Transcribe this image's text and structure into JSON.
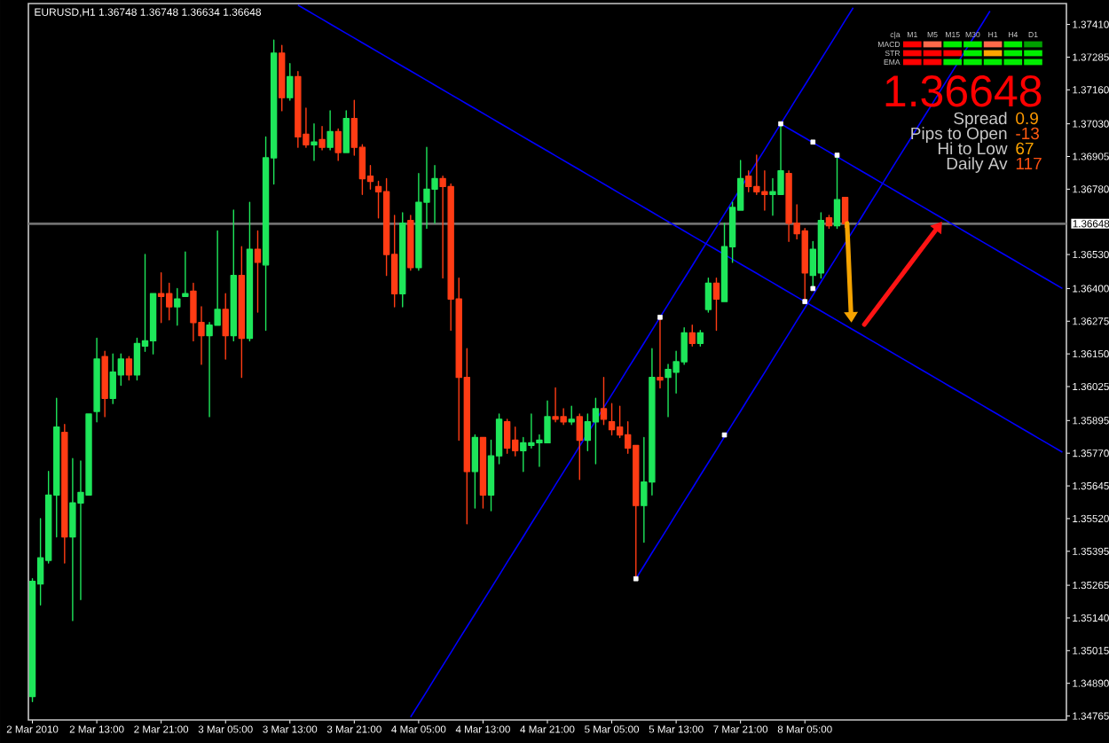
{
  "chart_data": {
    "type": "candlestick",
    "title": "EURUSD,H1 1.36748 1.36748 1.36634 1.36648",
    "categories": [
      "2 Mar 2010",
      null,
      null,
      null,
      null,
      null,
      null,
      null,
      "2 Mar 13:00",
      null,
      null,
      null,
      null,
      null,
      null,
      null,
      "2 Mar 21:00",
      null,
      null,
      null,
      null,
      null,
      null,
      null,
      "3 Mar 05:00",
      null,
      null,
      null,
      null,
      null,
      null,
      null,
      "3 Mar 13:00",
      null,
      null,
      null,
      null,
      null,
      null,
      null,
      "3 Mar 21:00",
      null,
      null,
      null,
      null,
      null,
      null,
      null,
      "4 Mar 05:00",
      null,
      null,
      null,
      null,
      null,
      null,
      null,
      "4 Mar 13:00",
      null,
      null,
      null,
      null,
      null,
      null,
      null,
      "4 Mar 21:00",
      null,
      null,
      null,
      null,
      null,
      null,
      null,
      "5 Mar 05:00",
      null,
      null,
      null,
      null,
      null,
      null,
      null,
      "5 Mar 13:00",
      null,
      null,
      null,
      null,
      null,
      null,
      null,
      "7 Mar 21:00",
      null,
      null,
      null,
      null,
      null,
      null,
      null,
      "8 Mar 05:00",
      null,
      null,
      null,
      null,
      null,
      null,
      null,
      null,
      null,
      null,
      null,
      null,
      null,
      null,
      null,
      null,
      null,
      null,
      null,
      null,
      null,
      null,
      null,
      null,
      null,
      null,
      null,
      null,
      null,
      null,
      null,
      null
    ],
    "ohlc": [
      [
        1.3484,
        1.3529,
        1.3482,
        1.3528
      ],
      [
        1.3527,
        1.3552,
        1.3519,
        1.3537
      ],
      [
        1.3536,
        1.357,
        1.3535,
        1.3561
      ],
      [
        1.3561,
        1.3598,
        1.3545,
        1.3587
      ],
      [
        1.3585,
        1.3588,
        1.3535,
        1.3545
      ],
      [
        1.3545,
        1.3575,
        1.3513,
        1.3558
      ],
      [
        1.3558,
        1.3574,
        1.3521,
        1.3562
      ],
      [
        1.3561,
        1.3592,
        1.3561,
        1.3592
      ],
      [
        1.3593,
        1.3621,
        1.3589,
        1.3613
      ],
      [
        1.3614,
        1.3616,
        1.3591,
        1.3598
      ],
      [
        1.3598,
        1.3615,
        1.3596,
        1.3608
      ],
      [
        1.3607,
        1.3615,
        1.3603,
        1.3613
      ],
      [
        1.3613,
        1.3614,
        1.3605,
        1.3607
      ],
      [
        1.3607,
        1.3621,
        1.3605,
        1.3619
      ],
      [
        1.3618,
        1.3653,
        1.3616,
        1.362
      ],
      [
        1.362,
        1.3638,
        1.3615,
        1.3638
      ],
      [
        1.3638,
        1.3646,
        1.3627,
        1.3637
      ],
      [
        1.3638,
        1.3642,
        1.3628,
        1.3633
      ],
      [
        1.3633,
        1.364,
        1.3626,
        1.3636
      ],
      [
        1.3637,
        1.3654,
        1.3637,
        1.3638
      ],
      [
        1.3639,
        1.3642,
        1.362,
        1.3627
      ],
      [
        1.3627,
        1.3633,
        1.3611,
        1.3622
      ],
      [
        1.3622,
        1.3627,
        1.3591,
        1.3626
      ],
      [
        1.3626,
        1.3662,
        1.3626,
        1.3632
      ],
      [
        1.3632,
        1.3638,
        1.3613,
        1.3622
      ],
      [
        1.3622,
        1.367,
        1.362,
        1.3645
      ],
      [
        1.3645,
        1.3656,
        1.3606,
        1.3621
      ],
      [
        1.3621,
        1.3673,
        1.362,
        1.3655
      ],
      [
        1.3655,
        1.3662,
        1.3631,
        1.365
      ],
      [
        1.3649,
        1.3698,
        1.3624,
        1.369
      ],
      [
        1.369,
        1.3735,
        1.368,
        1.373
      ],
      [
        1.373,
        1.3733,
        1.3708,
        1.3713
      ],
      [
        1.3713,
        1.3726,
        1.3712,
        1.3721
      ],
      [
        1.3721,
        1.3723,
        1.3694,
        1.3698
      ],
      [
        1.3699,
        1.3709,
        1.3694,
        1.3695
      ],
      [
        1.3695,
        1.3703,
        1.3689,
        1.3696
      ],
      [
        1.3697,
        1.3702,
        1.3693,
        1.3694
      ],
      [
        1.3694,
        1.3708,
        1.3693,
        1.37
      ],
      [
        1.37,
        1.3701,
        1.3689,
        1.3692
      ],
      [
        1.3692,
        1.3708,
        1.3692,
        1.3705
      ],
      [
        1.3705,
        1.3712,
        1.3691,
        1.3694
      ],
      [
        1.3694,
        1.3695,
        1.3676,
        1.3682
      ],
      [
        1.3683,
        1.3687,
        1.3678,
        1.3681
      ],
      [
        1.3679,
        1.3681,
        1.3667,
        1.3677
      ],
      [
        1.3677,
        1.3682,
        1.3645,
        1.3653
      ],
      [
        1.3653,
        1.3668,
        1.3633,
        1.3638
      ],
      [
        1.3638,
        1.3669,
        1.3633,
        1.3665
      ],
      [
        1.3666,
        1.3668,
        1.3647,
        1.3648
      ],
      [
        1.3648,
        1.3684,
        1.3647,
        1.3673
      ],
      [
        1.3673,
        1.3694,
        1.3663,
        1.3678
      ],
      [
        1.3678,
        1.3687,
        1.3665,
        1.3682
      ],
      [
        1.3682,
        1.3683,
        1.3644,
        1.3679
      ],
      [
        1.3679,
        1.368,
        1.3624,
        1.3636
      ],
      [
        1.3636,
        1.3644,
        1.3582,
        1.3606
      ],
      [
        1.3606,
        1.3617,
        1.355,
        1.357
      ],
      [
        1.357,
        1.3584,
        1.3556,
        1.3583
      ],
      [
        1.3583,
        1.3583,
        1.3556,
        1.3561
      ],
      [
        1.3561,
        1.3582,
        1.3555,
        1.3576
      ],
      [
        1.3576,
        1.3592,
        1.3573,
        1.359
      ],
      [
        1.3589,
        1.359,
        1.3577,
        1.3579
      ],
      [
        1.3582,
        1.3587,
        1.3576,
        1.3578
      ],
      [
        1.3578,
        1.3583,
        1.357,
        1.3581
      ],
      [
        1.358,
        1.3592,
        1.3579,
        1.3581
      ],
      [
        1.3581,
        1.3584,
        1.3572,
        1.3582
      ],
      [
        1.3581,
        1.3597,
        1.3581,
        1.3591
      ],
      [
        1.3591,
        1.3602,
        1.3589,
        1.359
      ],
      [
        1.3591,
        1.3594,
        1.3588,
        1.3589
      ],
      [
        1.3589,
        1.3595,
        1.3588,
        1.359
      ],
      [
        1.3591,
        1.3592,
        1.3567,
        1.3582
      ],
      [
        1.3582,
        1.3592,
        1.3578,
        1.3589
      ],
      [
        1.3589,
        1.3598,
        1.3573,
        1.3594
      ],
      [
        1.3594,
        1.3606,
        1.3588,
        1.359
      ],
      [
        1.3589,
        1.3596,
        1.3584,
        1.3586
      ],
      [
        1.3587,
        1.3595,
        1.3583,
        1.3584
      ],
      [
        1.3584,
        1.3589,
        1.3577,
        1.3579
      ],
      [
        1.358,
        1.358,
        1.3529,
        1.3557
      ],
      [
        1.3557,
        1.3583,
        1.3543,
        1.3566
      ],
      [
        1.3566,
        1.3617,
        1.3561,
        1.3606
      ],
      [
        1.3606,
        1.3629,
        1.3602,
        1.3605
      ],
      [
        1.3606,
        1.3611,
        1.3591,
        1.3609
      ],
      [
        1.3608,
        1.3616,
        1.36,
        1.3612
      ],
      [
        1.3612,
        1.3625,
        1.3611,
        1.3623
      ],
      [
        1.3623,
        1.3626,
        1.3618,
        1.3619
      ],
      [
        1.3619,
        1.3624,
        1.3618,
        1.3623
      ],
      [
        1.3632,
        1.3644,
        1.3631,
        1.3642
      ],
      [
        1.3642,
        1.3644,
        1.3624,
        1.3636
      ],
      [
        1.3635,
        1.3665,
        1.3635,
        1.3656
      ],
      [
        1.3656,
        1.3673,
        1.365,
        1.3671
      ],
      [
        1.367,
        1.3689,
        1.367,
        1.3682
      ],
      [
        1.3683,
        1.3685,
        1.3677,
        1.3679
      ],
      [
        1.3679,
        1.3691,
        1.3676,
        1.3677
      ],
      [
        1.3677,
        1.3685,
        1.367,
        1.3676
      ],
      [
        1.3676,
        1.3682,
        1.3668,
        1.3677
      ],
      [
        1.3676,
        1.3703,
        1.3676,
        1.3685
      ],
      [
        1.3684,
        1.3685,
        1.3658,
        1.3665
      ],
      [
        1.3665,
        1.3672,
        1.3659,
        1.3661
      ],
      [
        1.3662,
        1.3663,
        1.3635,
        1.3646
      ],
      [
        1.3645,
        1.3658,
        1.364,
        1.3655
      ],
      [
        1.3646,
        1.3669,
        1.3644,
        1.3666
      ],
      [
        1.3667,
        1.3668,
        1.3663,
        1.3664
      ],
      [
        1.3664,
        1.3691,
        1.3663,
        1.3674
      ],
      [
        1.36748,
        1.36748,
        1.36634,
        1.36648
      ],
      null,
      null,
      null,
      null,
      null,
      null,
      null,
      null,
      null,
      null,
      null,
      null,
      null,
      null,
      null,
      null,
      null,
      null,
      null,
      null,
      null,
      null,
      null,
      null,
      null,
      null,
      null
    ],
    "colors": [
      "#1ee65a",
      "#1ee65a",
      "#1ee65a",
      "#1ee65a",
      "#ff3c14",
      "#1ee65a",
      "#1ee65a",
      "#1ee65a",
      "#1ee65a",
      "#ff3c14",
      "#1ee65a",
      "#1ee65a",
      "#ff3c14",
      "#1ee65a",
      "#1ee65a",
      "#1ee65a",
      "#ff3c14",
      "#ff3c14",
      "#1ee65a",
      "#1ee65a",
      "#ff3c14",
      "#ff3c14",
      "#1ee65a",
      "#1ee65a",
      "#ff3c14",
      "#1ee65a",
      "#ff3c14",
      "#1ee65a",
      "#ff3c14",
      "#1ee65a",
      "#1ee65a",
      "#ff3c14",
      "#1ee65a",
      "#ff3c14",
      "#ff3c14",
      "#1ee65a",
      "#ff3c14",
      "#1ee65a",
      "#ff3c14",
      "#1ee65a",
      "#ff3c14",
      "#ff3c14",
      "#ff3c14",
      "#ff3c14",
      "#ff3c14",
      "#ff3c14",
      "#1ee65a",
      "#ff3c14",
      "#1ee65a",
      "#1ee65a",
      "#1ee65a",
      "#ff3c14",
      "#ff3c14",
      "#ff3c14",
      "#ff3c14",
      "#1ee65a",
      "#ff3c14",
      "#1ee65a",
      "#1ee65a",
      "#ff3c14",
      "#ff3c14",
      "#1ee65a",
      "#1ee65a",
      "#1ee65a",
      "#1ee65a",
      "#ff3c14",
      "#ff3c14",
      "#1ee65a",
      "#ff3c14",
      "#1ee65a",
      "#1ee65a",
      "#ff3c14",
      "#ff3c14",
      "#ff3c14",
      "#ff3c14",
      "#ff3c14",
      "#1ee65a",
      "#1ee65a",
      "#ff3c14",
      "#1ee65a",
      "#1ee65a",
      "#1ee65a",
      "#ff3c14",
      "#1ee65a",
      "#1ee65a",
      "#ff3c14",
      "#1ee65a",
      "#1ee65a",
      "#1ee65a",
      "#ff3c14",
      "#ff3c14",
      "#ff3c14",
      "#1ee65a",
      "#1ee65a",
      "#ff3c14",
      "#ff3c14",
      "#ff3c14",
      "#1ee65a",
      "#1ee65a",
      "#ff3c14",
      "#1ee65a",
      "#ff3c14",
      null,
      null,
      null,
      null,
      null,
      null,
      null,
      null,
      null,
      null,
      null,
      null,
      null,
      null,
      null,
      null,
      null,
      null,
      null,
      null,
      null,
      null,
      null,
      null,
      null,
      null,
      null
    ],
    "ylim": [
      1.3475,
      1.3749
    ],
    "yticks": [
      {
        "value": 1.3741,
        "label": "1.37410"
      },
      1.37285,
      {
        "value": 1.3716,
        "label": "1.37160"
      },
      {
        "value": 1.3703,
        "label": "1.37030"
      },
      1.36905,
      {
        "value": 1.3678,
        "label": "1.36780"
      },
      {
        "value": 1.3653,
        "label": "1.36530"
      },
      {
        "value": 1.364,
        "label": "1.36400"
      },
      1.36275,
      {
        "value": 1.3615,
        "label": "1.36150"
      },
      1.36025,
      1.35895,
      {
        "value": 1.3577,
        "label": "1.35770"
      },
      1.35645,
      {
        "value": 1.3552,
        "label": "1.35520"
      },
      1.35395,
      1.35265,
      {
        "value": 1.3514,
        "label": "1.35140"
      },
      1.35015,
      {
        "value": 1.3489,
        "label": "1.34890"
      },
      1.34765
    ],
    "series": [
      {
        "type": "line",
        "color": "#0000ff",
        "values": [
          null,
          null,
          null,
          null,
          null,
          null,
          null,
          null,
          null,
          null,
          null,
          null,
          null,
          null,
          null,
          null,
          null,
          null,
          null,
          null,
          null,
          null,
          null,
          null,
          null,
          null,
          null,
          null,
          null,
          null,
          null,
          null,
          null,
          null,
          null,
          null,
          null,
          null,
          null,
          null,
          null,
          null,
          null,
          null,
          null,
          null,
          null,
          1.34761,
          1.3481,
          1.34859,
          1.34909,
          1.34958,
          1.35007,
          1.35057,
          1.35106,
          1.35155,
          1.35205,
          1.35254,
          1.35303,
          1.35353,
          1.35402,
          1.35451,
          1.35501,
          1.3555,
          1.35599,
          1.35649,
          1.35698,
          1.35747,
          1.35797,
          1.35846,
          1.35895,
          1.35945,
          1.35994,
          1.36043,
          1.36093,
          1.36142,
          1.36191,
          1.36241,
          1.3629,
          1.36339,
          1.36389,
          1.36438,
          1.36487,
          1.36537,
          1.36586,
          1.36635,
          1.36685,
          1.36734,
          1.36783,
          1.36833,
          1.36882,
          1.36931,
          1.36981,
          1.3703,
          1.37079,
          1.37129,
          1.37178,
          1.37227,
          1.37277,
          1.37326,
          1.37375,
          1.37425,
          1.37474,
          null,
          null,
          null,
          null,
          null,
          null,
          null,
          null,
          null,
          null,
          null,
          null,
          null,
          null,
          null,
          null,
          null,
          null,
          null,
          null,
          null,
          null,
          null,
          null,
          null,
          null
        ]
      },
      {
        "type": "line",
        "color": "#0000ff",
        "values": [
          null,
          null,
          null,
          null,
          null,
          null,
          null,
          null,
          null,
          null,
          null,
          null,
          null,
          null,
          null,
          null,
          null,
          null,
          null,
          null,
          null,
          null,
          null,
          null,
          null,
          null,
          null,
          null,
          null,
          null,
          null,
          null,
          null,
          null,
          null,
          null,
          null,
          null,
          null,
          null,
          null,
          null,
          null,
          null,
          null,
          null,
          null,
          null,
          null,
          null,
          null,
          null,
          null,
          null,
          null,
          null,
          null,
          null,
          null,
          null,
          null,
          null,
          null,
          null,
          null,
          null,
          null,
          null,
          null,
          null,
          null,
          null,
          null,
          null,
          null,
          1.3529,
          1.35339,
          1.35389,
          1.35438,
          1.35487,
          1.35537,
          1.35586,
          1.35635,
          1.35685,
          1.35734,
          1.35783,
          1.35833,
          1.35882,
          1.35931,
          1.35981,
          1.3603,
          1.36079,
          1.36129,
          1.36178,
          1.36227,
          1.36277,
          1.36326,
          1.36375,
          1.36425,
          1.36474,
          1.36523,
          1.36573,
          1.36622,
          1.36671,
          1.36721,
          1.3677,
          1.36819,
          1.36869,
          1.36918,
          1.36967,
          1.37017,
          1.37066,
          1.37115,
          1.37165,
          1.37214,
          1.37263,
          1.37313,
          1.37362,
          1.37411,
          1.37461,
          null,
          null,
          null,
          null,
          null,
          null,
          null,
          null,
          null
        ]
      },
      {
        "type": "line",
        "color": "#0000ff",
        "values": [
          null,
          null,
          null,
          null,
          null,
          null,
          null,
          null,
          null,
          null,
          null,
          null,
          null,
          null,
          null,
          null,
          null,
          null,
          null,
          null,
          null,
          null,
          null,
          null,
          null,
          null,
          null,
          null,
          null,
          null,
          null,
          null,
          null,
          1.37484,
          1.37466,
          1.37448,
          1.3743,
          1.37412,
          1.37394,
          1.37376,
          1.37358,
          1.3734,
          1.37322,
          1.37304,
          1.37286,
          1.37268,
          1.3725,
          1.37232,
          1.37214,
          1.37196,
          1.37178,
          1.3716,
          1.37142,
          1.37124,
          1.37106,
          1.37088,
          1.3707,
          1.37052,
          1.37034,
          1.37016,
          1.36998,
          1.3698,
          1.36962,
          1.36944,
          1.36926,
          1.36908,
          1.3689,
          1.36872,
          1.36854,
          1.36836,
          1.36818,
          1.368,
          1.36782,
          1.36764,
          1.36746,
          1.36728,
          1.3671,
          1.36692,
          1.36674,
          1.36656,
          1.36638,
          1.3662,
          1.36602,
          1.36584,
          1.36566,
          1.36548,
          1.3653,
          1.36512,
          1.36494,
          1.36476,
          1.36458,
          1.3644,
          1.36422,
          1.36404,
          1.36386,
          1.36368,
          1.3635,
          1.36332,
          1.36314,
          1.36296,
          1.36278,
          1.3626,
          1.36242,
          1.36224,
          1.36206,
          1.36188,
          1.3617,
          1.36152,
          1.36134,
          1.36116,
          1.36098,
          1.3608,
          1.36062,
          1.36044,
          1.36026,
          1.36008,
          1.3599,
          1.35972,
          1.35954,
          1.35936,
          1.35918,
          1.359,
          1.35882,
          1.35864,
          1.35846,
          1.35828,
          1.3581,
          1.35792,
          1.35774
        ]
      },
      {
        "type": "line",
        "color": "#0000ff",
        "values": [
          null,
          null,
          null,
          null,
          null,
          null,
          null,
          null,
          null,
          null,
          null,
          null,
          null,
          null,
          null,
          null,
          null,
          null,
          null,
          null,
          null,
          null,
          null,
          null,
          null,
          null,
          null,
          null,
          null,
          null,
          null,
          null,
          null,
          null,
          null,
          null,
          null,
          null,
          null,
          null,
          null,
          null,
          null,
          null,
          null,
          null,
          null,
          null,
          null,
          null,
          null,
          null,
          null,
          null,
          null,
          null,
          null,
          null,
          null,
          null,
          null,
          null,
          null,
          null,
          null,
          null,
          null,
          null,
          null,
          null,
          null,
          null,
          null,
          null,
          null,
          null,
          null,
          null,
          null,
          null,
          null,
          null,
          null,
          null,
          null,
          null,
          null,
          null,
          null,
          null,
          null,
          null,
          null,
          1.3703,
          1.37012,
          1.36994,
          1.36976,
          1.36958,
          1.3694,
          1.36922,
          1.36904,
          1.36886,
          1.36868,
          1.3685,
          1.36832,
          1.36814,
          1.36796,
          1.36778,
          1.3676,
          1.36742,
          1.36724,
          1.36706,
          1.36688,
          1.3667,
          1.36652,
          1.36634,
          1.36616,
          1.36598,
          1.3658,
          1.36562,
          1.36544,
          1.36526,
          1.36508,
          1.3649,
          1.36472,
          1.36454,
          1.36436,
          1.36418,
          1.364
        ]
      },
      {
        "type": "scatter",
        "color": "#ffffff",
        "marker": "square",
        "values": [
          null,
          null,
          null,
          null,
          null,
          null,
          null,
          null,
          null,
          null,
          null,
          null,
          null,
          null,
          null,
          null,
          null,
          null,
          null,
          null,
          null,
          null,
          null,
          null,
          null,
          null,
          null,
          null,
          null,
          null,
          null,
          null,
          null,
          null,
          null,
          null,
          null,
          null,
          null,
          null,
          null,
          null,
          null,
          null,
          null,
          null,
          null,
          null,
          null,
          null,
          null,
          null,
          null,
          null,
          null,
          null,
          null,
          null,
          null,
          null,
          null,
          null,
          null,
          null,
          null,
          null,
          null,
          null,
          null,
          null,
          null,
          null,
          null,
          null,
          null,
          1.3529,
          null,
          null,
          1.3629,
          null,
          null,
          null,
          null,
          null,
          null,
          null,
          1.3584,
          null,
          null,
          null,
          null,
          null,
          null,
          1.3703,
          null,
          null,
          1.3635,
          1.3696,
          null,
          null,
          1.3691,
          null,
          null,
          null,
          null,
          null,
          null,
          null,
          null,
          null,
          null,
          null,
          null,
          null,
          null,
          null,
          null,
          null,
          null,
          null,
          null,
          null,
          null,
          null,
          null,
          null,
          null,
          null,
          null
        ]
      },
      {
        "type": "scatter",
        "color": "#ffffff",
        "marker": "square",
        "values": [
          null,
          null,
          null,
          null,
          null,
          null,
          null,
          null,
          null,
          null,
          null,
          null,
          null,
          null,
          null,
          null,
          null,
          null,
          null,
          null,
          null,
          null,
          null,
          null,
          null,
          null,
          null,
          null,
          null,
          null,
          null,
          null,
          null,
          null,
          null,
          null,
          null,
          null,
          null,
          null,
          null,
          null,
          null,
          null,
          null,
          null,
          null,
          null,
          null,
          null,
          null,
          null,
          null,
          null,
          null,
          null,
          null,
          null,
          null,
          null,
          null,
          null,
          null,
          null,
          null,
          null,
          null,
          null,
          null,
          null,
          null,
          null,
          null,
          null,
          null,
          null,
          null,
          null,
          null,
          null,
          null,
          null,
          null,
          null,
          null,
          null,
          null,
          null,
          null,
          null,
          null,
          null,
          null,
          null,
          null,
          null,
          null,
          1.364,
          null,
          null,
          null,
          null,
          null,
          null,
          null,
          null,
          null,
          null,
          null,
          null,
          null,
          null,
          null,
          null,
          null,
          null,
          null,
          null,
          null,
          null,
          null,
          null,
          null,
          null,
          null,
          null,
          null,
          null,
          null
        ]
      }
    ],
    "ref_lines": [
      {
        "axis": "y",
        "value": 1.36648,
        "label": "1.36648",
        "color": "#707070"
      }
    ],
    "annotations": [
      "1.36648",
      "Spread",
      "0.9",
      "Pips to Open",
      "-13",
      "Hi to Low",
      "67",
      "Daily Av",
      "117",
      "c|a",
      "M1",
      "M5",
      "M15",
      "M30",
      "H1",
      "H4",
      "D1",
      "MACD",
      "STR",
      "EMA"
    ]
  }
}
